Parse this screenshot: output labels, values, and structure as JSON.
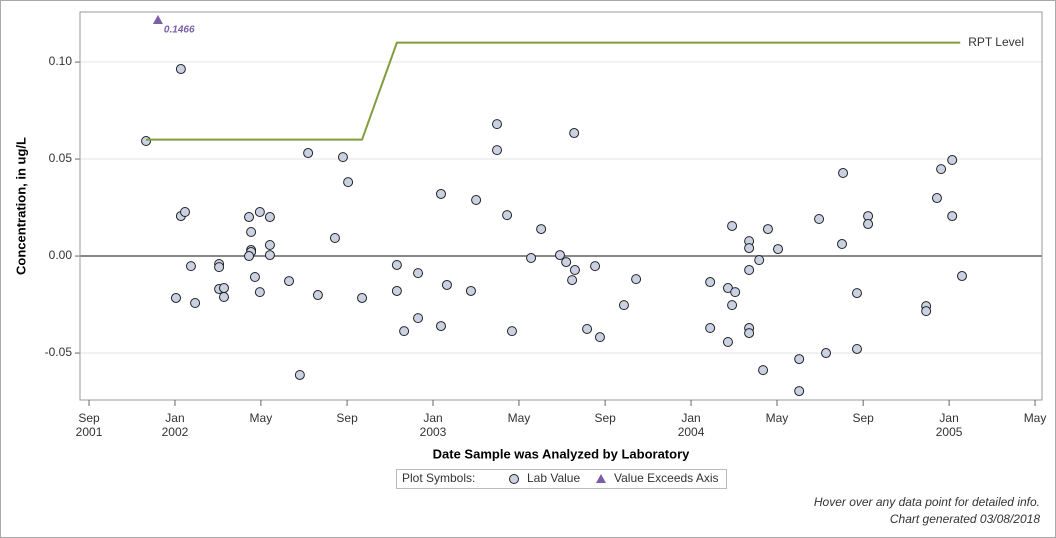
{
  "chart_data": {
    "type": "scatter",
    "x_label": "Date Sample was Analyzed by Laboratory",
    "y_label": "Concentration, in ug/L",
    "legend_title": "Plot Symbols:",
    "notes": [
      "Hover over any data point for detailed info.",
      "Chart generated 03/08/2018"
    ],
    "xlim": [
      2001.632,
      2005.36
    ],
    "ylim": [
      -0.0742,
      0.1258
    ],
    "xticks": [
      {
        "value": 2001.667,
        "label": "Sep\n2001"
      },
      {
        "value": 2002,
        "label": "Jan\n2002"
      },
      {
        "value": 2002.333,
        "label": "May"
      },
      {
        "value": 2002.667,
        "label": "Sep"
      },
      {
        "value": 2003,
        "label": "Jan\n2003"
      },
      {
        "value": 2003.333,
        "label": "May"
      },
      {
        "value": 2003.667,
        "label": "Sep"
      },
      {
        "value": 2004,
        "label": "Jan\n2004"
      },
      {
        "value": 2004.333,
        "label": "May"
      },
      {
        "value": 2004.667,
        "label": "Sep"
      },
      {
        "value": 2005,
        "label": "Jan\n2005"
      },
      {
        "value": 2005.333,
        "label": "May"
      }
    ],
    "yticks": [
      -0.05,
      {
        "value": 0,
        "label": "0.00"
      },
      0.05,
      {
        "value": 0.1,
        "label": "0.10"
      }
    ],
    "grid": true,
    "reference_line": 0,
    "series": [
      {
        "name": "Lab Value",
        "marker": "circle",
        "color": "#c9d1e3",
        "x": [
          2001.888,
          2002.023,
          2002.023,
          2002.039,
          2002.004,
          2002.062,
          2002.078,
          2002.171,
          2002.171,
          2002.171,
          2002.19,
          2002.19,
          2002.287,
          2002.295,
          2002.295,
          2002.295,
          2002.287,
          2002.329,
          2002.368,
          2002.368,
          2002.368,
          2002.31,
          2002.329,
          2002.442,
          2002.484,
          2002.516,
          2002.554,
          2002.62,
          2002.651,
          2002.671,
          2002.725,
          2002.86,
          2002.86,
          2002.888,
          2002.942,
          2002.942,
          2003.031,
          2003.031,
          2003.054,
          2003.147,
          2003.167,
          2003.248,
          2003.248,
          2003.287,
          2003.306,
          2003.38,
          2003.419,
          2003.492,
          2003.516,
          2003.547,
          2003.55,
          2003.539,
          2003.597,
          2003.628,
          2003.647,
          2003.74,
          2003.787,
          2004.074,
          2004.074,
          2004.143,
          2004.143,
          2004.159,
          2004.171,
          2004.159,
          2004.225,
          2004.225,
          2004.225,
          2004.225,
          2004.225,
          2004.264,
          2004.279,
          2004.298,
          2004.337,
          2004.419,
          2004.419,
          2004.496,
          2004.523,
          2004.585,
          2004.589,
          2004.643,
          2004.643,
          2004.686,
          2004.686,
          2004.911,
          2004.911,
          2004.953,
          2004.969,
          2005.012,
          2005.012,
          2005.05
        ],
        "values": [
          0.0593,
          0.0964,
          0.0206,
          0.0227,
          -0.0216,
          -0.0052,
          -0.0242,
          -0.0041,
          -0.0057,
          -0.017,
          -0.0165,
          -0.0211,
          0.0201,
          0.0124,
          0.0031,
          0.0021,
          0,
          0.0227,
          0.0201,
          0.0057,
          0.0005,
          -0.0108,
          -0.0186,
          -0.0129,
          -0.0613,
          0.0531,
          -0.0201,
          0.0093,
          0.051,
          0.0381,
          -0.0216,
          -0.0046,
          -0.018,
          -0.0387,
          -0.0088,
          -0.032,
          0.032,
          -0.0361,
          -0.0149,
          -0.018,
          0.0289,
          0.068,
          0.0546,
          0.0211,
          -0.0387,
          -0.001,
          0.0139,
          0.0005,
          -0.0031,
          0.0634,
          -0.0072,
          -0.0124,
          -0.0376,
          -0.0052,
          -0.0418,
          -0.0253,
          -0.0119,
          -0.0134,
          -0.0371,
          -0.0165,
          -0.0443,
          0.0155,
          -0.0186,
          -0.0253,
          0.0077,
          0.0041,
          -0.0072,
          -0.0371,
          -0.0397,
          -0.0021,
          -0.0588,
          0.0139,
          0.0036,
          -0.0531,
          -0.0696,
          0.0191,
          -0.05,
          0.0062,
          0.0428,
          -0.0191,
          -0.0479,
          0.0206,
          0.0165,
          -0.0258,
          -0.0284,
          0.0299,
          0.0448,
          0.0495,
          0.0206,
          -0.0103
        ]
      },
      {
        "name": "Value Exceeds Axis",
        "marker": "triangle",
        "color": "#7b5ea7",
        "x": [
          2001.934
        ],
        "values": [
          0.1466
        ],
        "value_labels": [
          "0.1466"
        ]
      },
      {
        "name": "RPT Level",
        "marker": "line",
        "color": "#7f9e3c",
        "x": [
          2001.888,
          2002.725,
          2002.86,
          2005.043
        ],
        "values": [
          0.06,
          0.06,
          0.11,
          0.11
        ]
      }
    ]
  }
}
